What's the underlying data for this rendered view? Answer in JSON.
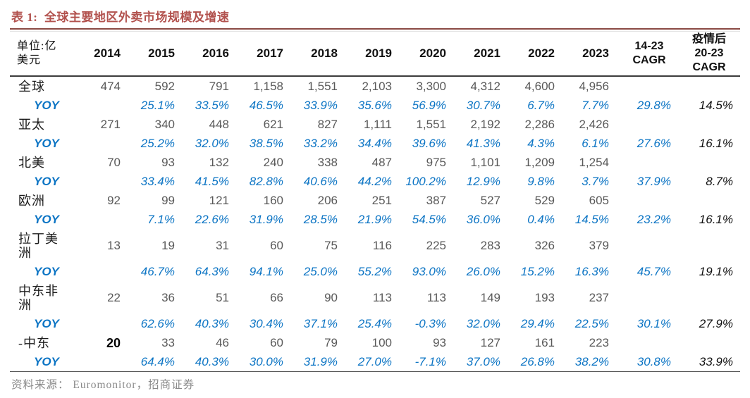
{
  "page": {
    "title": "表 1:  全球主要地区外卖市场规模及增速",
    "source_note": "资料来源： Euromonitor，招商证券"
  },
  "table": {
    "unit_header": "单位:亿\n美元",
    "year_headers": [
      "2014",
      "2015",
      "2016",
      "2017",
      "2018",
      "2019",
      "2020",
      "2021",
      "2022",
      "2023"
    ],
    "cagr_headers": [
      "14-23\nCAGR",
      "疫情后\n20-23\nCAGR"
    ],
    "rows": [
      {
        "label": "全球",
        "kind": "region",
        "values": [
          "474",
          "592",
          "791",
          "1,158",
          "1,551",
          "2,103",
          "3,300",
          "4,312",
          "4,600",
          "4,956",
          "",
          ""
        ]
      },
      {
        "label": "YOY",
        "kind": "yoy",
        "values": [
          "",
          "25.1%",
          "33.5%",
          "46.5%",
          "33.9%",
          "35.6%",
          "56.9%",
          "30.7%",
          "6.7%",
          "7.7%",
          "29.8%",
          "14.5%"
        ]
      },
      {
        "label": "亚太",
        "kind": "region",
        "values": [
          "271",
          "340",
          "448",
          "621",
          "827",
          "1,111",
          "1,551",
          "2,192",
          "2,286",
          "2,426",
          "",
          ""
        ]
      },
      {
        "label": "YOY",
        "kind": "yoy",
        "values": [
          "",
          "25.2%",
          "32.0%",
          "38.5%",
          "33.2%",
          "34.4%",
          "39.6%",
          "41.3%",
          "4.3%",
          "6.1%",
          "27.6%",
          "16.1%"
        ]
      },
      {
        "label": "北美",
        "kind": "region",
        "values": [
          "70",
          "93",
          "132",
          "240",
          "338",
          "487",
          "975",
          "1,101",
          "1,209",
          "1,254",
          "",
          ""
        ]
      },
      {
        "label": "YOY",
        "kind": "yoy",
        "values": [
          "",
          "33.4%",
          "41.5%",
          "82.8%",
          "40.6%",
          "44.2%",
          "100.2%",
          "12.9%",
          "9.8%",
          "3.7%",
          "37.9%",
          "8.7%"
        ]
      },
      {
        "label": "欧洲",
        "kind": "region",
        "values": [
          "92",
          "99",
          "121",
          "160",
          "206",
          "251",
          "387",
          "527",
          "529",
          "605",
          "",
          ""
        ]
      },
      {
        "label": "YOY",
        "kind": "yoy",
        "values": [
          "",
          "7.1%",
          "22.6%",
          "31.9%",
          "28.5%",
          "21.9%",
          "54.5%",
          "36.0%",
          "0.4%",
          "14.5%",
          "23.2%",
          "16.1%"
        ]
      },
      {
        "label": "拉丁美\n洲",
        "kind": "region",
        "values": [
          "13",
          "19",
          "31",
          "60",
          "75",
          "116",
          "225",
          "283",
          "326",
          "379",
          "",
          ""
        ]
      },
      {
        "label": "YOY",
        "kind": "yoy",
        "values": [
          "",
          "46.7%",
          "64.3%",
          "94.1%",
          "25.0%",
          "55.2%",
          "93.0%",
          "26.0%",
          "15.2%",
          "16.3%",
          "45.7%",
          "19.1%"
        ]
      },
      {
        "label": "中东非\n洲",
        "kind": "region",
        "values": [
          "22",
          "36",
          "51",
          "66",
          "90",
          "113",
          "113",
          "149",
          "193",
          "237",
          "",
          ""
        ]
      },
      {
        "label": "YOY",
        "kind": "yoy",
        "values": [
          "",
          "62.6%",
          "40.3%",
          "30.4%",
          "37.1%",
          "25.4%",
          "-0.3%",
          "32.0%",
          "29.4%",
          "22.5%",
          "30.1%",
          "27.9%"
        ]
      },
      {
        "label": "-中东",
        "kind": "region",
        "emphasis_cols": [
          0
        ],
        "values": [
          "20",
          "33",
          "46",
          "60",
          "79",
          "100",
          "93",
          "127",
          "161",
          "223",
          "",
          ""
        ]
      },
      {
        "label": "YOY",
        "kind": "yoy",
        "values": [
          "",
          "64.4%",
          "40.3%",
          "30.0%",
          "31.9%",
          "27.0%",
          "-7.1%",
          "37.0%",
          "26.8%",
          "38.2%",
          "30.8%",
          "33.9%"
        ]
      }
    ]
  },
  "colors": {
    "title_red": "#b2524e",
    "rule_red": "#8a4a44",
    "yoy_blue": "#0b74c4",
    "value_gray": "#595959",
    "label_black": "#1c1c1c",
    "border_dark": "#3c3c3c",
    "footer_gray": "#8a8a8a"
  }
}
